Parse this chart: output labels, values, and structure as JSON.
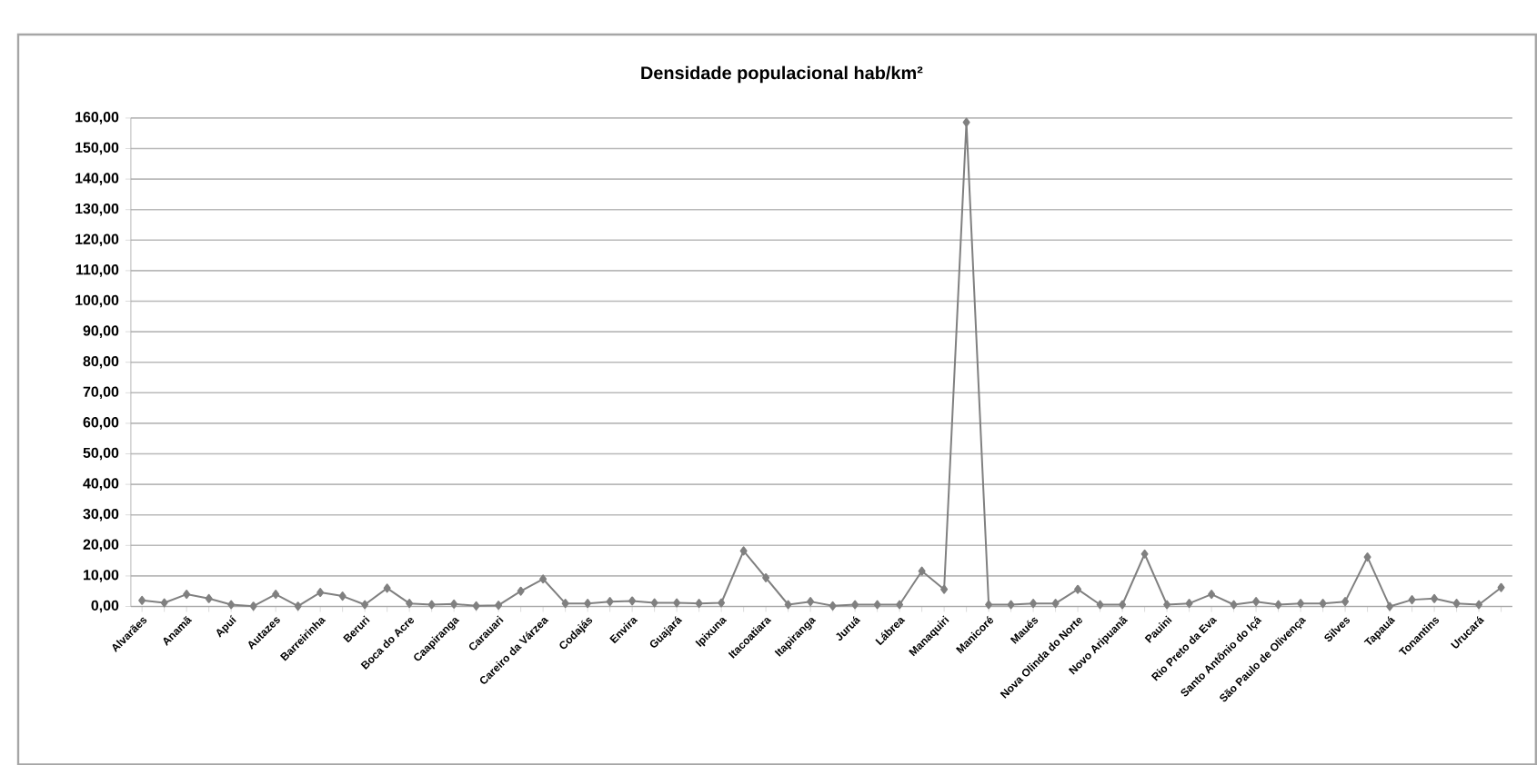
{
  "chart_data": {
    "type": "line",
    "title": "Densidade populacional hab/km²",
    "categories": [
      "Alvarães",
      null,
      "Anamã",
      null,
      "Apuí",
      null,
      "Autazes",
      null,
      "Barreirinha",
      null,
      "Beruri",
      null,
      "Boca do Acre",
      null,
      "Caapiranga",
      null,
      "Carauari",
      null,
      "Careiro da Várzea",
      null,
      "Codajás",
      null,
      "Envira",
      null,
      "Guajará",
      null,
      "Ipixuna",
      null,
      "Itacoatiara",
      null,
      "Itapiranga",
      null,
      "Juruá",
      null,
      "Lábrea",
      null,
      "Manaquiri",
      null,
      "Manicoré",
      null,
      "Maués",
      null,
      "Nova Olinda do Norte",
      null,
      "Novo Aripuanã",
      null,
      "Pauini",
      null,
      "Rio Preto da Eva",
      null,
      "Santo Antônio do Içá",
      null,
      "São Paulo de Olivença",
      null,
      "Silves",
      null,
      "Tapauá",
      null,
      "Tonantins",
      null,
      "Urucará",
      null
    ],
    "series": [
      {
        "color": "#808080",
        "values": [
          2.0,
          1.2,
          4.0,
          2.6,
          0.6,
          0.1,
          4.0,
          0.1,
          4.6,
          3.4,
          0.6,
          6.0,
          1.0,
          0.6,
          0.8,
          0.2,
          0.4,
          5.0,
          9.0,
          1.0,
          1.0,
          1.6,
          1.8,
          1.2,
          1.2,
          1.0,
          1.2,
          18.2,
          9.4,
          0.6,
          1.6,
          0.2,
          0.6,
          0.6,
          0.6,
          11.6,
          5.6,
          158.6,
          0.6,
          0.6,
          1.0,
          1.0,
          5.6,
          0.6,
          0.6,
          17.2,
          0.6,
          1.0,
          4.0,
          0.6,
          1.6,
          0.6,
          1.0,
          1.0,
          1.6,
          16.2,
          0.0,
          2.2,
          2.6,
          1.0,
          0.6,
          6.2
        ]
      }
    ],
    "ylim": [
      0,
      160
    ],
    "yticks": [
      {
        "value": 0,
        "label": "0,00"
      },
      {
        "value": 10,
        "label": "10,00"
      },
      {
        "value": 20,
        "label": "20,00"
      },
      {
        "value": 30,
        "label": "30,00"
      },
      {
        "value": 40,
        "label": "40,00"
      },
      {
        "value": 50,
        "label": "50,00"
      },
      {
        "value": 60,
        "label": "60,00"
      },
      {
        "value": 70,
        "label": "70,00"
      },
      {
        "value": 80,
        "label": "80,00"
      },
      {
        "value": 90,
        "label": "90,00"
      },
      {
        "value": 100,
        "label": "100,00"
      },
      {
        "value": 110,
        "label": "110,00"
      },
      {
        "value": 120,
        "label": "120,00"
      },
      {
        "value": 130,
        "label": "130,00"
      },
      {
        "value": 140,
        "label": "140,00"
      },
      {
        "value": 150,
        "label": "150,00"
      },
      {
        "value": 160,
        "label": "160,00"
      }
    ],
    "grid": "y",
    "marker": "diamond",
    "line_style": "solid"
  }
}
